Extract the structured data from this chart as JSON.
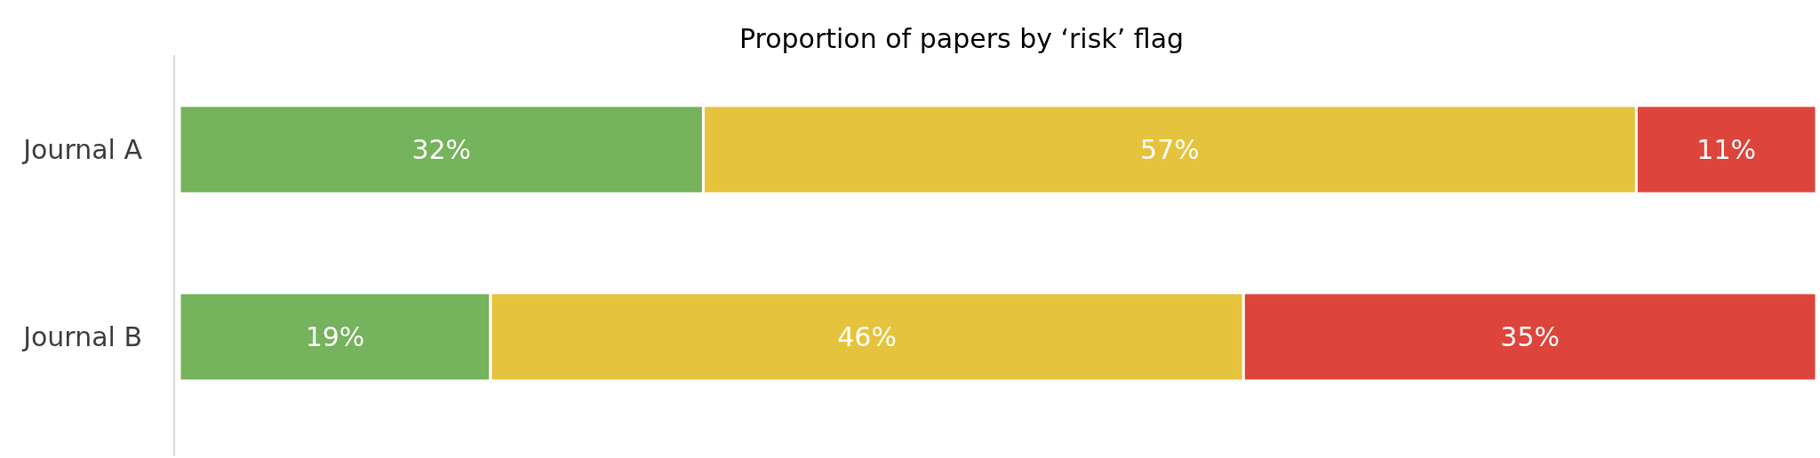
{
  "chart_data": {
    "type": "bar",
    "orientation": "horizontal",
    "stacked": true,
    "title": "Proportion of papers by ‘risk’ flag",
    "categories": [
      "Journal A",
      "Journal B"
    ],
    "tick_labels": "y",
    "series": [
      {
        "color": "#75b35c",
        "values": [
          32,
          19
        ],
        "value_labels": [
          "32%",
          "19%"
        ]
      },
      {
        "color": "#e6c33d",
        "values": [
          57,
          46
        ],
        "value_labels": [
          "57%",
          "46%"
        ]
      },
      {
        "color": "#dd453c",
        "values": [
          11,
          35
        ],
        "value_labels": [
          "11%",
          "35%"
        ]
      }
    ]
  }
}
